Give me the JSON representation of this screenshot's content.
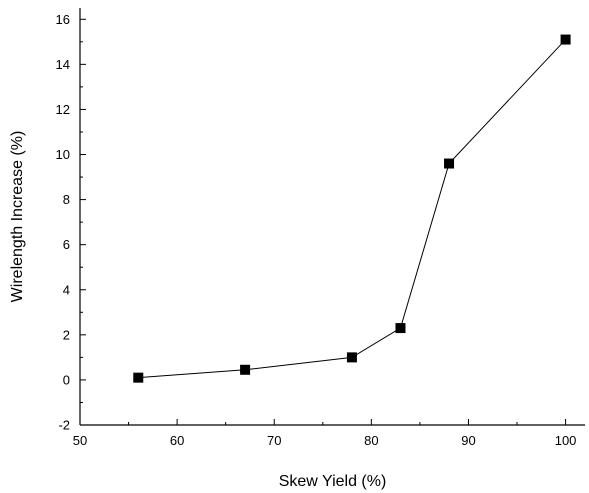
{
  "chart_data": {
    "type": "line",
    "xlabel": "Skew Yield (%)",
    "ylabel": "Wirelength Increase (%)",
    "xlim": [
      50,
      102
    ],
    "ylim": [
      -2,
      16.5
    ],
    "x_ticks": [
      50,
      60,
      70,
      80,
      90,
      100
    ],
    "y_ticks": [
      -2,
      0,
      2,
      4,
      6,
      8,
      10,
      12,
      14,
      16
    ],
    "grid": false,
    "legend": "none",
    "marker": "filled-square",
    "color": "#000000",
    "series": [
      {
        "x": [
          56,
          67,
          78,
          83,
          88,
          100
        ],
        "y": [
          0.1,
          0.45,
          1.0,
          2.3,
          9.6,
          15.1
        ]
      }
    ]
  }
}
